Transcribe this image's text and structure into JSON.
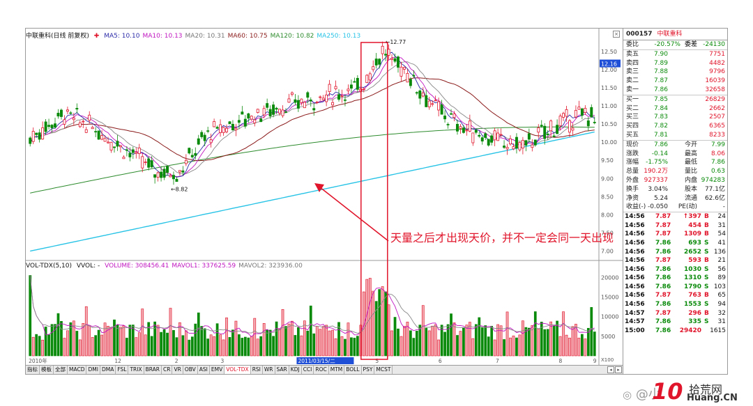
{
  "title_bar": {
    "name": "中联重科(日线 前复权)",
    "ma": [
      {
        "label": "MA5: 10.10",
        "color": "#2a2aa8"
      },
      {
        "label": "MA10: 10.13",
        "color": "#c015c0"
      },
      {
        "label": "MA20: 10.31",
        "color": "#777777"
      },
      {
        "label": "MA60: 10.75",
        "color": "#8b1a1a"
      },
      {
        "label": "MA120: 10.82",
        "color": "#2d8b2d"
      },
      {
        "label": "MA250: 10.13",
        "color": "#27c3e6"
      }
    ],
    "close_btn": "×"
  },
  "vol_bar": {
    "name": "VOL-TDX(5,10)",
    "vvol": "VVOL: -",
    "items": [
      {
        "label": "VOLUME: 308456.41",
        "color": "#c015c0"
      },
      {
        "label": "MAVOL1: 337625.59",
        "color": "#c015c0"
      },
      {
        "label": "MAVOL2: 323936.00",
        "color": "#777777"
      }
    ]
  },
  "price_axis": [
    "12.50",
    "12.00",
    "11.50",
    "11.00",
    "10.50",
    "10.00",
    "9.50",
    "9.00",
    "8.50",
    "8.00",
    "7.50",
    "7.00"
  ],
  "price_tag": "12.16",
  "vol_axis": [
    "20000",
    "15000",
    "10000",
    "5000"
  ],
  "vol_axis_unit": "X100",
  "date_labels": [
    {
      "label": "2010年",
      "highlight": false
    },
    {
      "label": "12",
      "highlight": false
    },
    {
      "label": "2",
      "highlight": false
    },
    {
      "label": "3",
      "highlight": false
    },
    {
      "label": "2011/03/15/二",
      "highlight": true
    },
    {
      "label": "5",
      "highlight": false
    },
    {
      "label": "6",
      "highlight": false
    },
    {
      "label": "7",
      "highlight": false
    },
    {
      "label": "8",
      "highlight": false
    },
    {
      "label": "9",
      "highlight": false
    }
  ],
  "price_marks": {
    "high": "12.77",
    "low": "8.82"
  },
  "annotation": "天量之后才出现天价，并不一定会同一天出现",
  "tabs": [
    "指标",
    "模板",
    "全部",
    "MACD",
    "DMI",
    "DMA",
    "FSL",
    "TRIX",
    "BRAR",
    "CR",
    "VR",
    "OBV",
    "ASI",
    "EMV",
    "VOL-TDX",
    "RSI",
    "WR",
    "SAR",
    "KDJ",
    "CCI",
    "ROC",
    "MTM",
    "BOLL",
    "PSY",
    "MCST"
  ],
  "active_tab": "VOL-TDX",
  "stock": {
    "code": "000157",
    "name": "中联重科"
  },
  "order_book": {
    "ratio": {
      "label": "委比",
      "value": "-20.57%",
      "label2": "委差",
      "value2": "-24130"
    },
    "asks": [
      {
        "label": "卖五",
        "price": "7.90",
        "vol": "7751"
      },
      {
        "label": "卖四",
        "price": "7.89",
        "vol": "4482"
      },
      {
        "label": "卖三",
        "price": "7.88",
        "vol": "9796"
      },
      {
        "label": "卖二",
        "price": "7.87",
        "vol": "16039"
      },
      {
        "label": "卖一",
        "price": "7.86",
        "vol": "32658"
      }
    ],
    "bids": [
      {
        "label": "买一",
        "price": "7.85",
        "vol": "26829"
      },
      {
        "label": "买二",
        "price": "7.84",
        "vol": "2662"
      },
      {
        "label": "买三",
        "price": "7.83",
        "vol": "2507"
      },
      {
        "label": "买四",
        "price": "7.82",
        "vol": "6365"
      },
      {
        "label": "买五",
        "price": "7.81",
        "vol": "8233"
      }
    ]
  },
  "quote": [
    {
      "l1": "现价",
      "v1": "7.86",
      "c1": "green",
      "l2": "今开",
      "v2": "7.99",
      "c2": "green"
    },
    {
      "l1": "涨跌",
      "v1": "-0.14",
      "c1": "green",
      "l2": "最高",
      "v2": "8.06",
      "c2": "red"
    },
    {
      "l1": "涨幅",
      "v1": "-1.75%",
      "c1": "green",
      "l2": "最低",
      "v2": "7.86",
      "c2": "green"
    },
    {
      "l1": "总量",
      "v1": "190.2万",
      "c1": "red",
      "l2": "量比",
      "v2": "0.63",
      "c2": "green"
    },
    {
      "l1": "外盘",
      "v1": "927337",
      "c1": "red",
      "l2": "内盘",
      "v2": "974283",
      "c2": "green"
    },
    {
      "l1": "换手",
      "v1": "3.04%",
      "c1": "blk",
      "l2": "股本",
      "v2": "77.1亿",
      "c2": "blk"
    },
    {
      "l1": "净资",
      "v1": "5.24",
      "c1": "blk",
      "l2": "流通",
      "v2": "62.6亿",
      "c2": "blk"
    },
    {
      "l1": "收益(-)",
      "v1": "-0.050",
      "c1": "blk",
      "l2": "PE(动)",
      "v2": "-",
      "c2": "blk"
    }
  ],
  "ticks": [
    {
      "time": "14:56",
      "price": "7.87",
      "vol": "↑397",
      "dir": "B",
      "n": "24"
    },
    {
      "time": "14:56",
      "price": "7.87",
      "vol": "454",
      "dir": "B",
      "n": "31"
    },
    {
      "time": "14:56",
      "price": "7.87",
      "vol": "1309",
      "dir": "B",
      "n": "54"
    },
    {
      "time": "14:56",
      "price": "7.86",
      "vol": "693",
      "dir": "S",
      "n": "41"
    },
    {
      "time": "14:56",
      "price": "7.86",
      "vol": "2652",
      "dir": "S",
      "n": "136"
    },
    {
      "time": "14:56",
      "price": "7.87",
      "vol": "593",
      "dir": "B",
      "n": "21"
    },
    {
      "time": "14:56",
      "price": "7.86",
      "vol": "1030",
      "dir": "S",
      "n": "56"
    },
    {
      "time": "14:56",
      "price": "7.86",
      "vol": "1310",
      "dir": "S",
      "n": "89"
    },
    {
      "time": "14:56",
      "price": "7.86",
      "vol": "1790",
      "dir": "S",
      "n": "103"
    },
    {
      "time": "14:56",
      "price": "7.87",
      "vol": "763",
      "dir": "B",
      "n": "65"
    },
    {
      "time": "14:56",
      "price": "7.86",
      "vol": "1553",
      "dir": "S",
      "n": "94"
    },
    {
      "time": "14:57",
      "price": "7.87",
      "vol": "296",
      "dir": "B",
      "n": "32"
    },
    {
      "time": "14:57",
      "price": "7.86",
      "vol": "335",
      "dir": "S",
      "n": "31"
    },
    {
      "time": "15:00",
      "price": "7.86",
      "vol": "29420",
      "dir": "",
      "n": "1615"
    }
  ],
  "watermark": {
    "weibo": "@小",
    "site_cn": "拾荒网",
    "site_en": "Huang.CN",
    "logo_num": "10"
  },
  "colors": {
    "up": "#e0142a",
    "down": "#0a8a0a",
    "annotation": "#e0142a"
  }
}
